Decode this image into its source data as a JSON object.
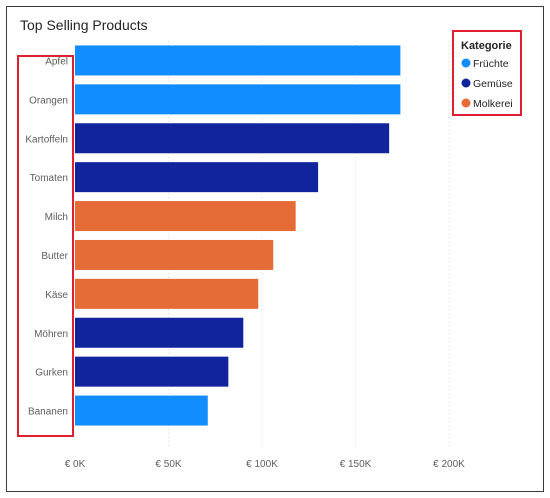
{
  "title": "Top Selling Products",
  "chart_data": {
    "type": "bar",
    "orientation": "horizontal",
    "title": "Top Selling Products",
    "categories": [
      "Äpfel",
      "Orangen",
      "Kartoffeln",
      "Tomaten",
      "Milch",
      "Butter",
      "Käse",
      "Möhren",
      "Gurken",
      "Bananen"
    ],
    "values": [
      174000,
      174000,
      168000,
      130000,
      118000,
      106000,
      98000,
      90000,
      82000,
      71000
    ],
    "group": [
      "Früchte",
      "Früchte",
      "Gemüse",
      "Gemüse",
      "Molkerei",
      "Molkerei",
      "Molkerei",
      "Gemüse",
      "Gemüse",
      "Früchte"
    ],
    "xlim": [
      0,
      200000
    ],
    "xticks": [
      0,
      50000,
      100000,
      150000,
      200000
    ],
    "xtick_labels": [
      "€ 0K",
      "€ 50K",
      "€ 100K",
      "€ 150K",
      "€ 200K"
    ],
    "grid": "vertical dotted",
    "legend": {
      "title": "Kategorie",
      "placement": "top-right",
      "entries": [
        {
          "name": "Früchte",
          "color": "#118dff"
        },
        {
          "name": "Gemüse",
          "color": "#12239e"
        },
        {
          "name": "Molkerei",
          "color": "#e66c37"
        }
      ]
    }
  },
  "highlight_color": "#e0202e"
}
